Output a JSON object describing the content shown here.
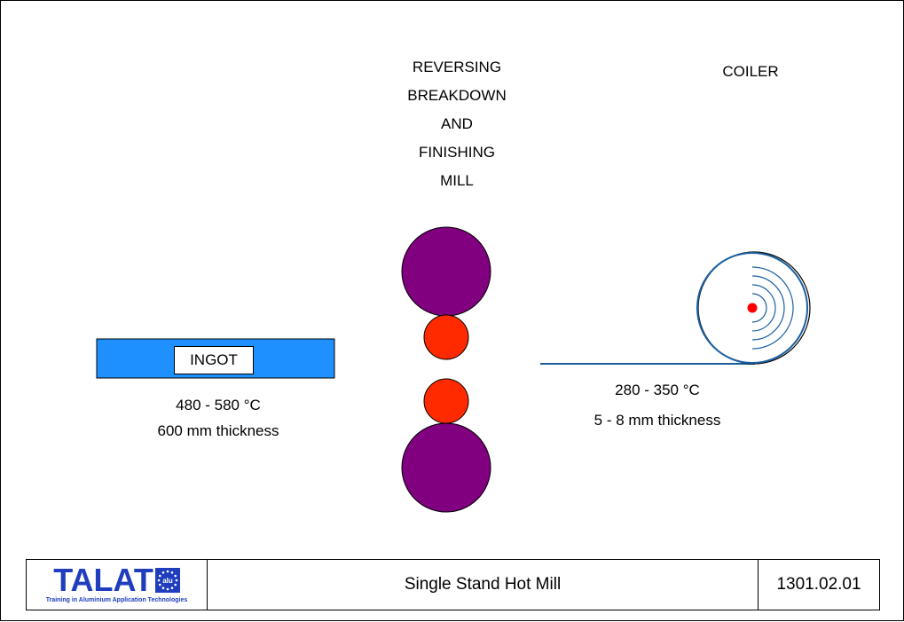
{
  "mill": {
    "lines": [
      "REVERSING",
      "BREAKDOWN",
      "AND",
      "FINISHING",
      "MILL"
    ]
  },
  "coiler": {
    "label": "COILER"
  },
  "ingot": {
    "label": "INGOT",
    "temperature": "480 - 580  °C",
    "thickness": "600 mm thickness"
  },
  "strip": {
    "temperature": "280 - 350  °C",
    "thickness": "5  - 8 mm thickness"
  },
  "footer": {
    "logo_text": "TALAT",
    "logo_badge": "alu",
    "logo_subtitle": "Training in Aluminium Application Technologies",
    "title": "Single Stand Hot Mill",
    "code": "1301.02.01"
  },
  "colors": {
    "ingot": "#1e90ff",
    "backup_roll": "#800080",
    "work_roll": "#ff2a00",
    "strip": "#1a5fa0",
    "coil_center": "#ff0000",
    "logo": "#1f3dbd"
  }
}
